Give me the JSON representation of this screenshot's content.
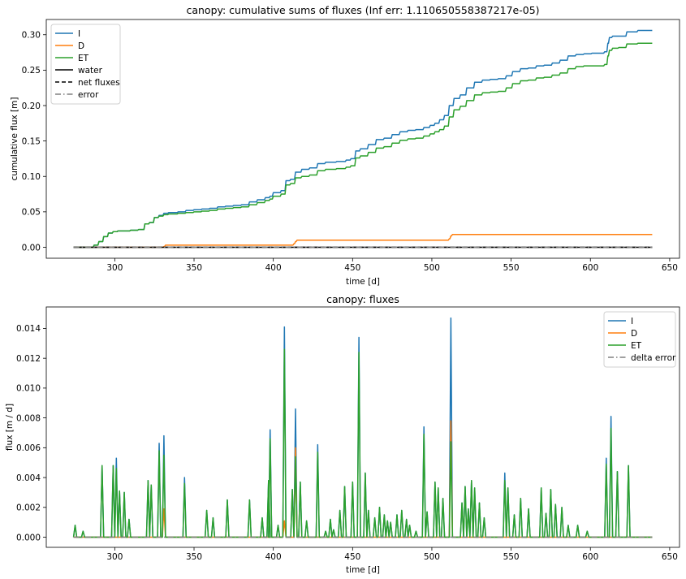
{
  "chart_data": [
    {
      "type": "line",
      "title": "canopy: cumulative sums of fluxes (Inf err: 1.110650558387217e-05)",
      "xlabel": "time [d]",
      "ylabel": "cumulative flux [m]",
      "xlim": [
        256.8,
        656.2
      ],
      "ylim": [
        -0.0155,
        0.3215
      ],
      "xticks": [
        300,
        350,
        400,
        450,
        500,
        550,
        600,
        650
      ],
      "yticks": [
        0.0,
        0.05,
        0.1,
        0.15,
        0.2,
        0.25,
        0.3
      ],
      "ytick_labels": [
        "0.00",
        "0.05",
        "0.10",
        "0.15",
        "0.20",
        "0.25",
        "0.30"
      ],
      "grid": false,
      "legend_position": "top-left",
      "series": [
        {
          "name": "I",
          "color": "#1f77b4",
          "style": "solid",
          "x": [
            274,
            282,
            287,
            290,
            293,
            296,
            299,
            302,
            305,
            310,
            315,
            319,
            322,
            325,
            328,
            331,
            334,
            340,
            345,
            350,
            355,
            360,
            365,
            370,
            375,
            380,
            385,
            390,
            395,
            398,
            400,
            405,
            408,
            411,
            414,
            418,
            423,
            428,
            433,
            440,
            446,
            449,
            452,
            455,
            460,
            465,
            470,
            475,
            480,
            485,
            490,
            495,
            499,
            502,
            505,
            508,
            511,
            514,
            518,
            522,
            527,
            532,
            537,
            542,
            547,
            551,
            556,
            561,
            566,
            571,
            576,
            581,
            586,
            591,
            596,
            601,
            606,
            609,
            611,
            612,
            614,
            618,
            623,
            630,
            639
          ],
          "y": [
            0,
            0,
            0.003,
            0.008,
            0.015,
            0.02,
            0.022,
            0.023,
            0.023,
            0.024,
            0.025,
            0.033,
            0.035,
            0.042,
            0.045,
            0.048,
            0.049,
            0.05,
            0.052,
            0.053,
            0.054,
            0.055,
            0.057,
            0.058,
            0.059,
            0.06,
            0.064,
            0.067,
            0.07,
            0.072,
            0.077,
            0.08,
            0.094,
            0.096,
            0.106,
            0.11,
            0.112,
            0.118,
            0.12,
            0.121,
            0.123,
            0.125,
            0.136,
            0.139,
            0.145,
            0.152,
            0.154,
            0.159,
            0.163,
            0.165,
            0.166,
            0.169,
            0.172,
            0.175,
            0.18,
            0.186,
            0.2,
            0.21,
            0.215,
            0.225,
            0.233,
            0.236,
            0.237,
            0.238,
            0.242,
            0.248,
            0.252,
            0.253,
            0.256,
            0.257,
            0.26,
            0.264,
            0.27,
            0.272,
            0.273,
            0.274,
            0.274,
            0.276,
            0.288,
            0.296,
            0.298,
            0.298,
            0.304,
            0.306,
            0.306
          ]
        },
        {
          "name": "D",
          "color": "#ff7f0e",
          "style": "solid",
          "x": [
            274,
            330,
            331,
            332,
            412,
            413,
            414,
            415,
            510,
            511,
            512,
            513,
            639
          ],
          "y": [
            0,
            0,
            0.001,
            0.003,
            0.003,
            0.005,
            0.008,
            0.01,
            0.01,
            0.012,
            0.016,
            0.018,
            0.018
          ]
        },
        {
          "name": "ET",
          "color": "#2ca02c",
          "style": "solid",
          "x": [
            274,
            282,
            287,
            290,
            293,
            296,
            299,
            302,
            305,
            310,
            315,
            319,
            322,
            325,
            328,
            331,
            334,
            340,
            345,
            350,
            355,
            360,
            365,
            370,
            375,
            380,
            385,
            390,
            395,
            398,
            400,
            405,
            408,
            411,
            414,
            418,
            423,
            428,
            433,
            440,
            446,
            449,
            452,
            455,
            460,
            465,
            470,
            475,
            480,
            485,
            490,
            495,
            499,
            502,
            505,
            508,
            511,
            514,
            518,
            522,
            527,
            532,
            537,
            542,
            547,
            551,
            556,
            561,
            566,
            571,
            576,
            581,
            586,
            591,
            596,
            601,
            606,
            609,
            611,
            612,
            614,
            618,
            623,
            630,
            639
          ],
          "y": [
            0,
            0,
            0.003,
            0.008,
            0.015,
            0.02,
            0.022,
            0.023,
            0.023,
            0.024,
            0.025,
            0.033,
            0.035,
            0.042,
            0.044,
            0.046,
            0.047,
            0.048,
            0.049,
            0.05,
            0.051,
            0.052,
            0.054,
            0.055,
            0.056,
            0.057,
            0.06,
            0.063,
            0.066,
            0.068,
            0.072,
            0.075,
            0.088,
            0.09,
            0.098,
            0.1,
            0.102,
            0.108,
            0.11,
            0.111,
            0.113,
            0.115,
            0.126,
            0.129,
            0.134,
            0.14,
            0.142,
            0.147,
            0.151,
            0.153,
            0.154,
            0.157,
            0.16,
            0.163,
            0.166,
            0.171,
            0.184,
            0.194,
            0.199,
            0.207,
            0.215,
            0.218,
            0.219,
            0.22,
            0.225,
            0.231,
            0.235,
            0.236,
            0.239,
            0.24,
            0.243,
            0.246,
            0.252,
            0.255,
            0.256,
            0.256,
            0.256,
            0.258,
            0.27,
            0.278,
            0.281,
            0.282,
            0.287,
            0.288,
            0.288
          ]
        },
        {
          "name": "water",
          "color": "#000000",
          "style": "solid",
          "x": [
            274,
            639
          ],
          "y": [
            0,
            0
          ]
        },
        {
          "name": "net fluxes",
          "color": "#000000",
          "style": "dashed",
          "x": [
            274,
            639
          ],
          "y": [
            0,
            0
          ]
        },
        {
          "name": "error",
          "color": "#808080",
          "style": "dashdot",
          "x": [
            274,
            639
          ],
          "y": [
            0,
            0
          ]
        }
      ]
    },
    {
      "type": "line",
      "title": "canopy: fluxes",
      "xlabel": "time [d]",
      "ylabel": "flux [m / d]",
      "xlim": [
        256.8,
        656.2
      ],
      "ylim": [
        -0.00068,
        0.01544
      ],
      "xticks": [
        300,
        350,
        400,
        450,
        500,
        550,
        600,
        650
      ],
      "yticks": [
        0.0,
        0.002,
        0.004,
        0.006,
        0.008,
        0.01,
        0.012,
        0.014
      ],
      "ytick_labels": [
        "0.000",
        "0.002",
        "0.004",
        "0.006",
        "0.008",
        "0.010",
        "0.012",
        "0.014"
      ],
      "grid": false,
      "legend_position": "top-right",
      "peaks": {
        "I": [
          [
            275,
            0.0008
          ],
          [
            280,
            0.0004
          ],
          [
            292,
            0.0048
          ],
          [
            299,
            0.0048
          ],
          [
            301,
            0.0053
          ],
          [
            303,
            0.0031
          ],
          [
            306,
            0.003
          ],
          [
            309,
            0.0012
          ],
          [
            321,
            0.0038
          ],
          [
            323,
            0.0035
          ],
          [
            328,
            0.0063
          ],
          [
            331,
            0.0068
          ],
          [
            344,
            0.004
          ],
          [
            358,
            0.0018
          ],
          [
            362,
            0.0013
          ],
          [
            371,
            0.0025
          ],
          [
            385,
            0.0025
          ],
          [
            393,
            0.0013
          ],
          [
            397,
            0.0038
          ],
          [
            398,
            0.0072
          ],
          [
            403,
            0.0008
          ],
          [
            407,
            0.0141
          ],
          [
            412,
            0.0032
          ],
          [
            414,
            0.0086
          ],
          [
            417,
            0.0037
          ],
          [
            421,
            0.0011
          ],
          [
            428,
            0.0062
          ],
          [
            433,
            0.0004
          ],
          [
            436,
            0.0012
          ],
          [
            438,
            0.0005
          ],
          [
            442,
            0.0018
          ],
          [
            445,
            0.0034
          ],
          [
            450,
            0.0037
          ],
          [
            454,
            0.0134
          ],
          [
            458,
            0.0043
          ],
          [
            460,
            0.0018
          ],
          [
            464,
            0.0013
          ],
          [
            467,
            0.002
          ],
          [
            470,
            0.0015
          ],
          [
            472,
            0.0011
          ],
          [
            474,
            0.001
          ],
          [
            478,
            0.0015
          ],
          [
            481,
            0.0018
          ],
          [
            484,
            0.0012
          ],
          [
            486,
            0.0008
          ],
          [
            490,
            0.0004
          ],
          [
            495,
            0.0074
          ],
          [
            497,
            0.0017
          ],
          [
            502,
            0.0037
          ],
          [
            504,
            0.0033
          ],
          [
            507,
            0.0026
          ],
          [
            512,
            0.0147
          ],
          [
            519,
            0.0023
          ],
          [
            521,
            0.0034
          ],
          [
            523,
            0.0019
          ],
          [
            525,
            0.0038
          ],
          [
            527,
            0.0033
          ],
          [
            530,
            0.0023
          ],
          [
            533,
            0.0013
          ],
          [
            546,
            0.0043
          ],
          [
            548,
            0.0033
          ],
          [
            552,
            0.0015
          ],
          [
            556,
            0.0026
          ],
          [
            561,
            0.0019
          ],
          [
            569,
            0.0033
          ],
          [
            572,
            0.0016
          ],
          [
            575,
            0.0032
          ],
          [
            578,
            0.0022
          ],
          [
            582,
            0.002
          ],
          [
            586,
            0.0008
          ],
          [
            592,
            0.0008
          ],
          [
            598,
            0.0004
          ],
          [
            610,
            0.0053
          ],
          [
            613,
            0.0081
          ],
          [
            617,
            0.0044
          ],
          [
            624,
            0.0048
          ]
        ],
        "D": [
          [
            331,
            0.0019
          ],
          [
            407,
            0.0011
          ],
          [
            414,
            0.006
          ],
          [
            512,
            0.0078
          ]
        ],
        "ET": [
          [
            275,
            0.0008
          ],
          [
            280,
            0.0004
          ],
          [
            292,
            0.0048
          ],
          [
            299,
            0.0048
          ],
          [
            301,
            0.0046
          ],
          [
            303,
            0.0031
          ],
          [
            306,
            0.003
          ],
          [
            309,
            0.0012
          ],
          [
            321,
            0.0038
          ],
          [
            323,
            0.0035
          ],
          [
            328,
            0.0058
          ],
          [
            331,
            0.0055
          ],
          [
            344,
            0.0036
          ],
          [
            358,
            0.0018
          ],
          [
            362,
            0.0013
          ],
          [
            371,
            0.0025
          ],
          [
            385,
            0.0025
          ],
          [
            393,
            0.0013
          ],
          [
            397,
            0.0038
          ],
          [
            398,
            0.0066
          ],
          [
            403,
            0.0008
          ],
          [
            407,
            0.0126
          ],
          [
            412,
            0.0032
          ],
          [
            414,
            0.0054
          ],
          [
            417,
            0.0037
          ],
          [
            421,
            0.0011
          ],
          [
            428,
            0.0057
          ],
          [
            433,
            0.0004
          ],
          [
            436,
            0.0012
          ],
          [
            438,
            0.0005
          ],
          [
            442,
            0.0018
          ],
          [
            445,
            0.0034
          ],
          [
            450,
            0.0037
          ],
          [
            454,
            0.0124
          ],
          [
            458,
            0.0043
          ],
          [
            460,
            0.0018
          ],
          [
            464,
            0.0013
          ],
          [
            467,
            0.002
          ],
          [
            470,
            0.0015
          ],
          [
            472,
            0.0011
          ],
          [
            474,
            0.001
          ],
          [
            478,
            0.0015
          ],
          [
            481,
            0.0018
          ],
          [
            484,
            0.0012
          ],
          [
            486,
            0.0008
          ],
          [
            490,
            0.0004
          ],
          [
            495,
            0.0069
          ],
          [
            497,
            0.0017
          ],
          [
            502,
            0.0037
          ],
          [
            504,
            0.0033
          ],
          [
            507,
            0.0026
          ],
          [
            512,
            0.0064
          ],
          [
            519,
            0.0023
          ],
          [
            521,
            0.0034
          ],
          [
            523,
            0.0019
          ],
          [
            525,
            0.0038
          ],
          [
            527,
            0.0033
          ],
          [
            530,
            0.0023
          ],
          [
            533,
            0.0013
          ],
          [
            546,
            0.0038
          ],
          [
            548,
            0.0033
          ],
          [
            552,
            0.0015
          ],
          [
            556,
            0.0026
          ],
          [
            561,
            0.0019
          ],
          [
            569,
            0.0033
          ],
          [
            572,
            0.0016
          ],
          [
            575,
            0.0032
          ],
          [
            578,
            0.0022
          ],
          [
            582,
            0.002
          ],
          [
            586,
            0.0008
          ],
          [
            592,
            0.0008
          ],
          [
            598,
            0.0004
          ],
          [
            610,
            0.0049
          ],
          [
            613,
            0.0073
          ],
          [
            617,
            0.0044
          ],
          [
            624,
            0.0048
          ]
        ]
      },
      "x_range": [
        274,
        639
      ],
      "series": [
        {
          "name": "I",
          "color": "#1f77b4",
          "style": "solid"
        },
        {
          "name": "D",
          "color": "#ff7f0e",
          "style": "solid"
        },
        {
          "name": "ET",
          "color": "#2ca02c",
          "style": "solid"
        },
        {
          "name": "delta error",
          "color": "#808080",
          "style": "dashdot"
        }
      ]
    }
  ]
}
